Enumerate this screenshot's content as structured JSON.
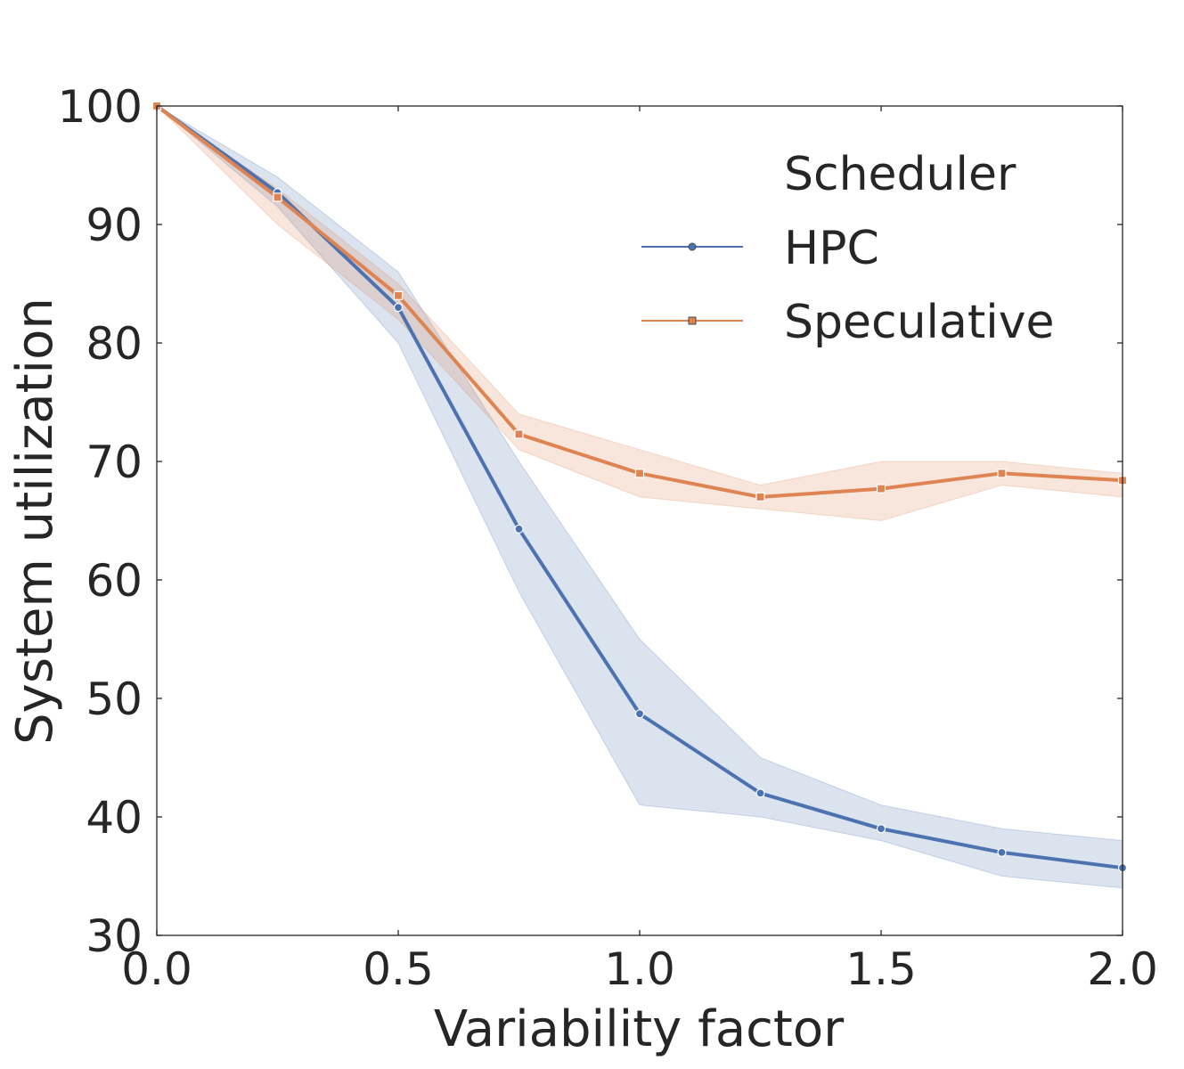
{
  "chart_data": {
    "type": "line",
    "xlabel": "Variability factor",
    "ylabel": "System utilization",
    "xlim": [
      0.0,
      2.0
    ],
    "ylim": [
      30,
      100
    ],
    "xticks": [
      "0.0",
      "0.5",
      "1.0",
      "1.5",
      "2.0"
    ],
    "yticks": [
      "30",
      "40",
      "50",
      "60",
      "70",
      "80",
      "90",
      "100"
    ],
    "grid": false,
    "legend": {
      "title": "Scheduler",
      "placement": "top-right"
    },
    "x": [
      0.0,
      0.25,
      0.5,
      0.75,
      1.0,
      1.25,
      1.5,
      1.75,
      2.0
    ],
    "series": [
      {
        "name": "HPC",
        "color": "#4c72b0",
        "marker": "circle",
        "values": [
          100,
          92.7,
          83.0,
          64.3,
          48.7,
          42.0,
          39.0,
          37.0,
          35.7
        ],
        "ci_low": [
          100,
          91.5,
          80.0,
          59.0,
          41.0,
          40.0,
          38.0,
          35.0,
          34.0
        ],
        "ci_high": [
          100,
          94.0,
          86.0,
          70.0,
          55.0,
          45.0,
          41.0,
          39.0,
          38.0
        ]
      },
      {
        "name": "Speculative",
        "color": "#dd8452",
        "marker": "square",
        "values": [
          100,
          92.3,
          84.0,
          72.3,
          69.0,
          67.0,
          67.7,
          69.0,
          68.4
        ],
        "ci_low": [
          100,
          90.0,
          82.0,
          71.0,
          67.0,
          66.0,
          65.0,
          68.0,
          67.0
        ],
        "ci_high": [
          100,
          93.0,
          85.0,
          74.0,
          71.0,
          68.0,
          70.0,
          70.0,
          69.0
        ]
      }
    ]
  }
}
